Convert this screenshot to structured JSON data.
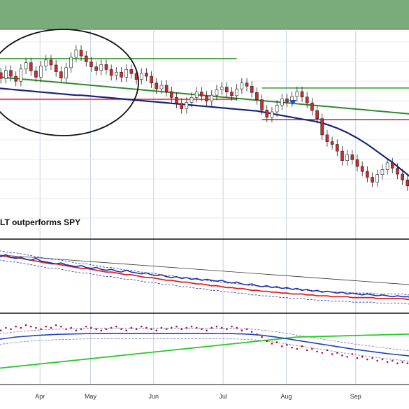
{
  "chart_data": {
    "type": "line",
    "x_tick_labels": [
      "Apr",
      "May",
      "Jun",
      "Jul",
      "Aug",
      "Sep"
    ],
    "colors": {
      "up_candle": "#ffffff",
      "down_candle": "#d62728",
      "moving_avg_fast": "#1a237e",
      "moving_avg_slow": "#2e8b2e",
      "resistance": "#2e9b2e",
      "support": "#e02020",
      "relative_line": "#1c2fb0",
      "relative_avg": "#e02020",
      "trend_line": "#333333",
      "breadth_dots": "#b01030",
      "breadth_ma": "#2040c0",
      "breadth_long_ma": "#22cc22",
      "annotation": "#111111"
    },
    "panels": [
      {
        "name": "price",
        "ohlc_close": [
          128.4,
          127.1,
          128.9,
          127.6,
          126.5,
          129.2,
          130.6,
          128.8,
          127.4,
          129.9,
          131.2,
          130.1,
          128.6,
          127.2,
          129.5,
          131.8,
          133.4,
          132.1,
          130.8,
          129.7,
          128.9,
          130.2,
          129.1,
          127.8,
          128.5,
          127.4,
          129.1,
          128.2,
          126.9,
          128.3,
          127.6,
          126.1,
          124.8,
          125.6,
          124.2,
          122.9,
          121.6,
          120.4,
          121.8,
          122.9,
          124.1,
          123.2,
          122.1,
          123.4,
          124.6,
          125.2,
          124.1,
          123.3,
          124.8,
          126.1,
          125.4,
          124.0,
          122.4,
          120.1,
          118.5,
          119.7,
          121.2,
          122.6,
          121.9,
          123.1,
          124.2,
          123.0,
          121.7,
          120.0,
          118.2,
          114.6,
          113.1,
          112.5,
          111.0,
          108.9,
          110.2,
          109.1,
          107.6,
          106.5,
          105.2,
          104.1,
          105.8,
          106.9,
          108.4,
          107.2,
          105.9,
          104.6,
          103.3,
          101.8
        ],
        "moving_avg_fast": [
          125.0,
          124.9,
          124.8,
          124.7,
          124.6,
          124.5,
          124.4,
          124.3,
          124.2,
          124.1,
          124.0,
          123.9,
          123.8,
          123.7,
          123.6,
          123.5,
          123.4,
          123.4,
          123.3,
          123.2,
          123.1,
          123.0,
          122.9,
          122.8,
          122.7,
          122.6,
          122.5,
          122.4,
          122.3,
          122.2,
          122.1,
          122.0,
          121.9,
          121.8,
          121.7,
          121.6,
          121.5,
          121.4,
          121.3,
          121.2,
          121.1,
          121.0,
          120.9,
          120.8,
          120.7,
          120.6,
          120.5,
          120.4,
          120.3,
          120.2,
          120.1,
          120.0,
          119.9,
          119.7,
          119.5,
          119.3,
          119.1,
          118.9,
          118.7,
          118.5,
          118.3,
          118.1,
          117.9,
          117.7,
          117.5,
          117.2,
          116.9,
          116.5,
          116.1,
          115.6,
          115.1,
          114.5,
          113.9,
          113.2,
          112.5,
          111.7,
          110.9,
          110.1,
          109.3,
          108.5,
          107.6,
          106.7,
          105.8,
          104.9
        ],
        "moving_avg_slow": [
          127.5,
          127.4,
          127.3,
          127.2,
          127.1,
          127.0,
          126.9,
          126.8,
          126.7,
          126.6,
          126.5,
          126.4,
          126.3,
          126.2,
          126.1,
          126.0,
          125.9,
          125.8,
          125.7,
          125.6,
          125.5,
          125.4,
          125.3,
          125.2,
          125.1,
          125.0,
          124.9,
          124.8,
          124.7,
          124.6,
          124.5,
          124.4,
          124.3,
          124.2,
          124.1,
          124.0,
          123.9,
          123.8,
          123.7,
          123.6,
          123.5,
          123.4,
          123.3,
          123.2,
          123.1,
          123.0,
          122.9,
          122.8,
          122.7,
          122.6,
          122.5,
          122.4,
          122.3,
          122.2,
          122.1,
          122.0,
          121.9,
          121.8,
          121.7,
          121.6,
          121.5,
          121.4,
          121.3,
          121.2,
          121.1,
          121.0,
          120.9,
          120.8,
          120.7,
          120.6,
          120.5,
          120.4,
          120.3,
          120.2,
          120.1,
          120.0,
          119.9,
          119.8,
          119.7,
          119.6,
          119.5,
          119.4,
          119.3,
          119.2
        ],
        "levels": [
          {
            "kind": "resistance",
            "value": 131.5,
            "from": 0,
            "to": 48
          },
          {
            "kind": "support",
            "value": 122.5,
            "from": 0,
            "to": 48
          },
          {
            "kind": "resistance",
            "value": 125.0,
            "from": 53,
            "to": 83
          },
          {
            "kind": "support",
            "value": 118.0,
            "from": 53,
            "to": 83
          }
        ],
        "ylim": [
          98,
          138
        ]
      },
      {
        "name": "relative",
        "label": "LT outperforms SPY",
        "line": [
          1.3,
          1.29,
          1.31,
          1.28,
          1.27,
          1.28,
          1.26,
          1.25,
          1.27,
          1.24,
          1.23,
          1.22,
          1.21,
          1.22,
          1.2,
          1.19,
          1.18,
          1.19,
          1.17,
          1.16,
          1.17,
          1.15,
          1.14,
          1.15,
          1.13,
          1.12,
          1.14,
          1.12,
          1.11,
          1.1,
          1.11,
          1.09,
          1.08,
          1.09,
          1.07,
          1.06,
          1.07,
          1.05,
          1.06,
          1.04,
          1.05,
          1.03,
          1.04,
          1.03,
          1.02,
          1.03,
          1.01,
          1.0,
          1.01,
          0.99,
          0.98,
          0.99,
          0.97,
          0.96,
          0.97,
          0.95,
          0.96,
          0.94,
          0.95,
          0.93,
          0.94,
          0.92,
          0.93,
          0.91,
          0.92,
          0.9,
          0.91,
          0.9,
          0.89,
          0.9,
          0.88,
          0.89,
          0.88,
          0.87,
          0.88,
          0.87,
          0.86,
          0.87,
          0.86,
          0.85,
          0.86,
          0.85,
          0.85,
          0.84
        ],
        "moving_avg": [
          1.31,
          1.3,
          1.29,
          1.28,
          1.28,
          1.27,
          1.26,
          1.25,
          1.24,
          1.23,
          1.22,
          1.21,
          1.21,
          1.2,
          1.19,
          1.18,
          1.17,
          1.16,
          1.16,
          1.15,
          1.14,
          1.13,
          1.12,
          1.12,
          1.11,
          1.1,
          1.09,
          1.09,
          1.08,
          1.07,
          1.06,
          1.06,
          1.05,
          1.04,
          1.03,
          1.03,
          1.02,
          1.01,
          1.01,
          1.0,
          0.99,
          0.99,
          0.98,
          0.97,
          0.97,
          0.96,
          0.95,
          0.95,
          0.94,
          0.94,
          0.93,
          0.92,
          0.92,
          0.91,
          0.91,
          0.9,
          0.9,
          0.89,
          0.89,
          0.88,
          0.88,
          0.88,
          0.87,
          0.87,
          0.86,
          0.86,
          0.86,
          0.85,
          0.85,
          0.85,
          0.85,
          0.84,
          0.84,
          0.84,
          0.84,
          0.84,
          0.83,
          0.83,
          0.83,
          0.83,
          0.83,
          0.83,
          0.82,
          0.82
        ],
        "trend_line": [
          1.31,
          0.98
        ],
        "ylim": [
          0.7,
          1.45
        ]
      },
      {
        "name": "breadth",
        "dots": [
          50,
          49,
          51,
          50,
          52,
          51,
          53,
          52,
          51,
          50,
          52,
          51,
          53,
          52,
          50,
          51,
          49,
          50,
          52,
          51,
          50,
          49,
          50,
          51,
          52,
          50,
          49,
          51,
          50,
          52,
          51,
          50,
          49,
          51,
          50,
          51,
          52,
          50,
          51,
          52,
          51,
          50,
          49,
          51,
          52,
          51,
          50,
          52,
          51,
          49,
          50,
          48,
          46,
          44,
          41,
          39,
          40,
          37,
          38,
          36,
          35,
          37,
          34,
          35,
          33,
          32,
          34,
          31,
          32,
          30,
          29,
          31,
          28,
          29,
          27,
          28,
          26,
          27,
          25,
          26,
          24,
          25,
          24,
          23
        ],
        "moving_avg": [
          42,
          42.5,
          43,
          43.5,
          44,
          44.3,
          44.6,
          44.9,
          45.2,
          45.4,
          45.6,
          45.8,
          46,
          46.1,
          46.2,
          46.3,
          46.4,
          46.5,
          46.6,
          46.7,
          46.8,
          46.8,
          46.8,
          46.8,
          46.8,
          46.8,
          46.8,
          46.8,
          46.8,
          46.8,
          46.8,
          46.8,
          46.8,
          46.8,
          46.8,
          46.8,
          46.8,
          46.8,
          46.8,
          46.8,
          46.8,
          46.8,
          46.8,
          46.8,
          46.7,
          46.7,
          46.6,
          46.6,
          46.5,
          46.4,
          46.2,
          46.0,
          45.7,
          45.3,
          44.9,
          44.4,
          43.9,
          43.3,
          42.7,
          42.1,
          41.5,
          40.9,
          40.3,
          39.7,
          39.1,
          38.5,
          37.9,
          37.3,
          36.7,
          36.1,
          35.5,
          34.9,
          34.4,
          33.9,
          33.4,
          32.9,
          32.4,
          31.9,
          31.4,
          31.0,
          30.6,
          30.2,
          29.8,
          29.4
        ],
        "long_moving_avg": [
          20,
          20.4,
          20.8,
          21.2,
          21.6,
          22,
          22.4,
          22.8,
          23.2,
          23.6,
          24,
          24.4,
          24.8,
          25.2,
          25.6,
          26,
          26.4,
          26.8,
          27.2,
          27.6,
          28,
          28.4,
          28.8,
          29.2,
          29.6,
          30,
          30.4,
          30.8,
          31.2,
          31.6,
          32,
          32.4,
          32.8,
          33.2,
          33.6,
          34,
          34.4,
          34.8,
          35.2,
          35.6,
          36,
          36.4,
          36.8,
          37.2,
          37.6,
          38,
          38.4,
          38.8,
          39.2,
          39.6,
          40,
          40.4,
          40.8,
          41.2,
          41.6,
          42,
          42.4,
          42.8,
          43.2,
          43.6,
          44,
          44.1,
          44.2,
          44.3,
          44.4,
          44.5,
          44.6,
          44.7,
          44.8,
          44.9,
          45,
          45.1,
          45.2,
          45.3,
          45.4,
          45.5,
          45.6,
          45.7,
          45.8,
          45.9,
          46,
          46.1,
          46.2,
          46.3
        ],
        "ylim": [
          10,
          60
        ]
      }
    ]
  }
}
